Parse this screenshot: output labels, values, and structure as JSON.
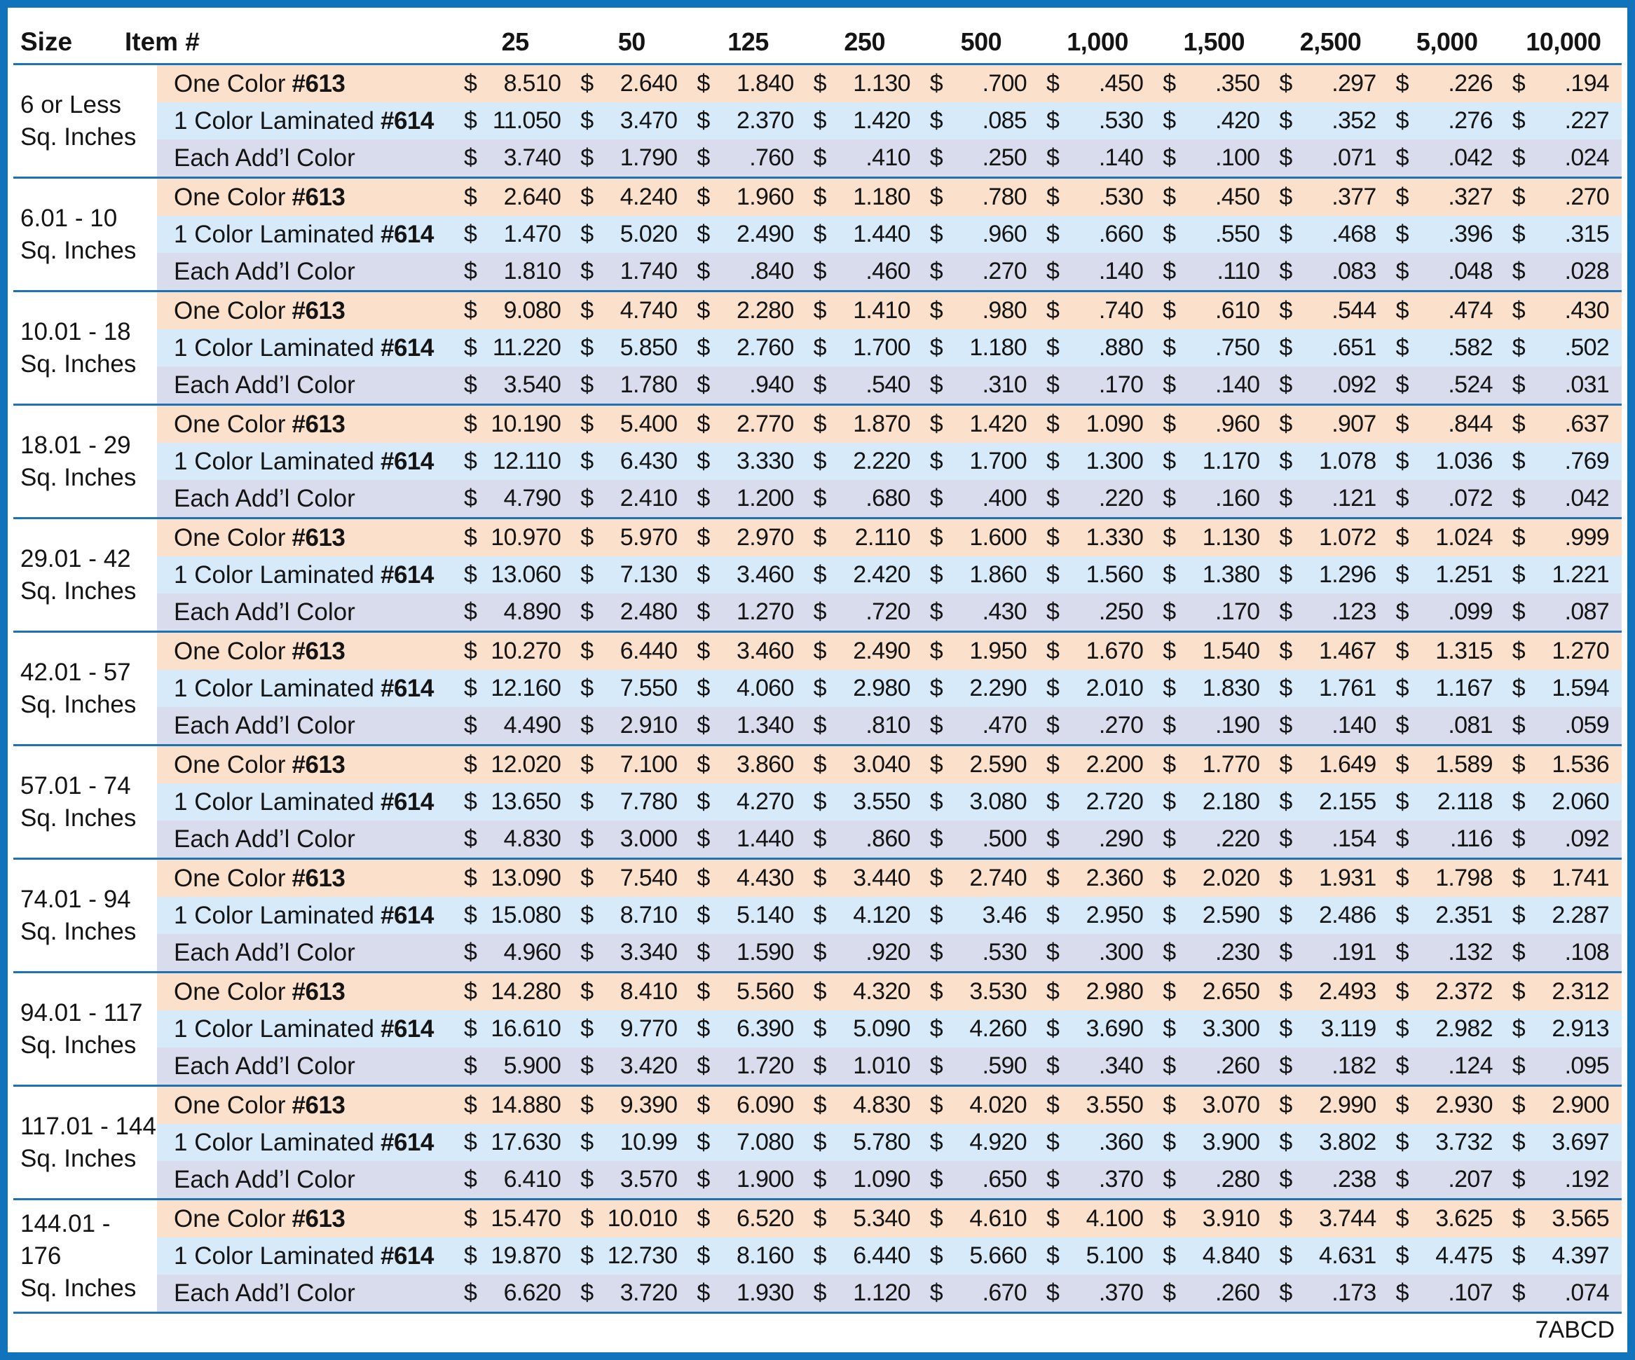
{
  "header": {
    "size_label": "Size",
    "item_label": "Item #",
    "quantities": [
      "25",
      "50",
      "125",
      "250",
      "500",
      "1,000",
      "1,500",
      "2,500",
      "5,000",
      "10,000"
    ]
  },
  "currency": "$",
  "row_template": [
    {
      "key": "one",
      "label": "One Color",
      "item": "#613"
    },
    {
      "key": "lam",
      "label": "1 Color Laminated",
      "item": "#614"
    },
    {
      "key": "addl",
      "label": "Each Add’l Color",
      "item": ""
    }
  ],
  "colors": {
    "frame": "#1273bd",
    "divider_line": "#1d71b5",
    "one_color_row": "#fbe0cc",
    "laminated_row": "#d7eaf9",
    "addl_color_row": "#d9dcec"
  },
  "groups": [
    {
      "range": "6 or Less",
      "unit": "Sq. Inches",
      "prices": {
        "one": [
          "8.510",
          "2.640",
          "1.840",
          "1.130",
          ".700",
          ".450",
          ".350",
          ".297",
          ".226",
          ".194"
        ],
        "lam": [
          "11.050",
          "3.470",
          "2.370",
          "1.420",
          ".085",
          ".530",
          ".420",
          ".352",
          ".276",
          ".227"
        ],
        "addl": [
          "3.740",
          "1.790",
          ".760",
          ".410",
          ".250",
          ".140",
          ".100",
          ".071",
          ".042",
          ".024"
        ]
      }
    },
    {
      "range": "6.01 - 10",
      "unit": "Sq. Inches",
      "prices": {
        "one": [
          "2.640",
          "4.240",
          "1.960",
          "1.180",
          ".780",
          ".530",
          ".450",
          ".377",
          ".327",
          ".270"
        ],
        "lam": [
          "1.470",
          "5.020",
          "2.490",
          "1.440",
          ".960",
          ".660",
          ".550",
          ".468",
          ".396",
          ".315"
        ],
        "addl": [
          "1.810",
          "1.740",
          ".840",
          ".460",
          ".270",
          ".140",
          ".110",
          ".083",
          ".048",
          ".028"
        ]
      }
    },
    {
      "range": "10.01 - 18",
      "unit": "Sq. Inches",
      "prices": {
        "one": [
          "9.080",
          "4.740",
          "2.280",
          "1.410",
          ".980",
          ".740",
          ".610",
          ".544",
          ".474",
          ".430"
        ],
        "lam": [
          "11.220",
          "5.850",
          "2.760",
          "1.700",
          "1.180",
          ".880",
          ".750",
          ".651",
          ".582",
          ".502"
        ],
        "addl": [
          "3.540",
          "1.780",
          ".940",
          ".540",
          ".310",
          ".170",
          ".140",
          ".092",
          ".524",
          ".031"
        ]
      }
    },
    {
      "range": "18.01 - 29",
      "unit": "Sq. Inches",
      "prices": {
        "one": [
          "10.190",
          "5.400",
          "2.770",
          "1.870",
          "1.420",
          "1.090",
          ".960",
          ".907",
          ".844",
          ".637"
        ],
        "lam": [
          "12.110",
          "6.430",
          "3.330",
          "2.220",
          "1.700",
          "1.300",
          "1.170",
          "1.078",
          "1.036",
          ".769"
        ],
        "addl": [
          "4.790",
          "2.410",
          "1.200",
          ".680",
          ".400",
          ".220",
          ".160",
          ".121",
          ".072",
          ".042"
        ]
      }
    },
    {
      "range": "29.01 - 42",
      "unit": "Sq. Inches",
      "prices": {
        "one": [
          "10.970",
          "5.970",
          "2.970",
          "2.110",
          "1.600",
          "1.330",
          "1.130",
          "1.072",
          "1.024",
          ".999"
        ],
        "lam": [
          "13.060",
          "7.130",
          "3.460",
          "2.420",
          "1.860",
          "1.560",
          "1.380",
          "1.296",
          "1.251",
          "1.221"
        ],
        "addl": [
          "4.890",
          "2.480",
          "1.270",
          ".720",
          ".430",
          ".250",
          ".170",
          ".123",
          ".099",
          ".087"
        ]
      }
    },
    {
      "range": "42.01 - 57",
      "unit": "Sq. Inches",
      "prices": {
        "one": [
          "10.270",
          "6.440",
          "3.460",
          "2.490",
          "1.950",
          "1.670",
          "1.540",
          "1.467",
          "1.315",
          "1.270"
        ],
        "lam": [
          "12.160",
          "7.550",
          "4.060",
          "2.980",
          "2.290",
          "2.010",
          "1.830",
          "1.761",
          "1.167",
          "1.594"
        ],
        "addl": [
          "4.490",
          "2.910",
          "1.340",
          ".810",
          ".470",
          ".270",
          ".190",
          ".140",
          ".081",
          ".059"
        ]
      }
    },
    {
      "range": "57.01 - 74",
      "unit": "Sq. Inches",
      "prices": {
        "one": [
          "12.020",
          "7.100",
          "3.860",
          "3.040",
          "2.590",
          "2.200",
          "1.770",
          "1.649",
          "1.589",
          "1.536"
        ],
        "lam": [
          "13.650",
          "7.780",
          "4.270",
          "3.550",
          "3.080",
          "2.720",
          "2.180",
          "2.155",
          "2.118",
          "2.060"
        ],
        "addl": [
          "4.830",
          "3.000",
          "1.440",
          ".860",
          ".500",
          ".290",
          ".220",
          ".154",
          ".116",
          ".092"
        ]
      }
    },
    {
      "range": "74.01 - 94",
      "unit": "Sq. Inches",
      "prices": {
        "one": [
          "13.090",
          "7.540",
          "4.430",
          "3.440",
          "2.740",
          "2.360",
          "2.020",
          "1.931",
          "1.798",
          "1.741"
        ],
        "lam": [
          "15.080",
          "8.710",
          "5.140",
          "4.120",
          "3.46",
          "2.950",
          "2.590",
          "2.486",
          "2.351",
          "2.287"
        ],
        "addl": [
          "4.960",
          "3.340",
          "1.590",
          ".920",
          ".530",
          ".300",
          ".230",
          ".191",
          ".132",
          ".108"
        ]
      }
    },
    {
      "range": "94.01 -  117",
      "unit": "Sq. Inches",
      "prices": {
        "one": [
          "14.280",
          "8.410",
          "5.560",
          "4.320",
          "3.530",
          "2.980",
          "2.650",
          "2.493",
          "2.372",
          "2.312"
        ],
        "lam": [
          "16.610",
          "9.770",
          "6.390",
          "5.090",
          "4.260",
          "3.690",
          "3.300",
          "3.119",
          "2.982",
          "2.913"
        ],
        "addl": [
          "5.900",
          "3.420",
          "1.720",
          "1.010",
          ".590",
          ".340",
          ".260",
          ".182",
          ".124",
          ".095"
        ]
      }
    },
    {
      "range": "117.01 - 144",
      "unit": "Sq. Inches",
      "prices": {
        "one": [
          "14.880",
          "9.390",
          "6.090",
          "4.830",
          "4.020",
          "3.550",
          "3.070",
          "2.990",
          "2.930",
          "2.900"
        ],
        "lam": [
          "17.630",
          "10.99",
          "7.080",
          "5.780",
          "4.920",
          ".360",
          "3.900",
          "3.802",
          "3.732",
          "3.697"
        ],
        "addl": [
          "6.410",
          "3.570",
          "1.900",
          "1.090",
          ".650",
          ".370",
          ".280",
          ".238",
          ".207",
          ".192"
        ]
      }
    },
    {
      "range": "144.01 - 176",
      "unit": "Sq. Inches",
      "prices": {
        "one": [
          "15.470",
          "10.010",
          "6.520",
          "5.340",
          "4.610",
          "4.100",
          "3.910",
          "3.744",
          "3.625",
          "3.565"
        ],
        "lam": [
          "19.870",
          "12.730",
          "8.160",
          "6.440",
          "5.660",
          "5.100",
          "4.840",
          "4.631",
          "4.475",
          "4.397"
        ],
        "addl": [
          "6.620",
          "3.720",
          "1.930",
          "1.120",
          ".670",
          ".370",
          ".260",
          ".173",
          ".107",
          ".074"
        ]
      }
    }
  ],
  "footer": {
    "code": "7ABCD"
  }
}
